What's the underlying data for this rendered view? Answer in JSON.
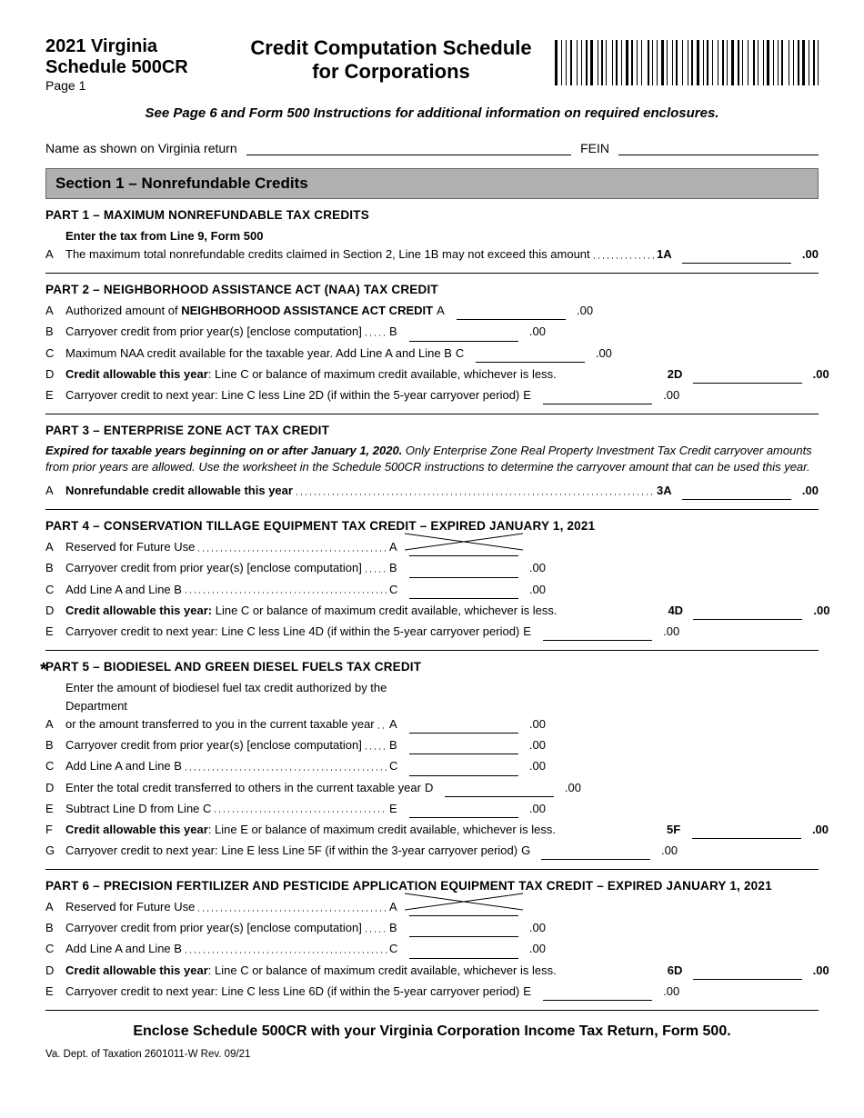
{
  "header": {
    "year_state": "2021 Virginia",
    "schedule": "Schedule 500CR",
    "page": "Page 1",
    "title_line1": "Credit Computation Schedule",
    "title_line2": "for Corporations"
  },
  "instructions": "See Page 6 and Form 500 Instructions for additional information on required enclosures.",
  "name_label": "Name as shown on Virginia return",
  "fein_label": "FEIN",
  "section1_title": "Section 1 – Nonrefundable Credits",
  "colors": {
    "section_bg": "#b0b0b0",
    "border": "#666",
    "text": "#000"
  },
  "suffix": ".00",
  "part1": {
    "title": "PART 1 – MAXIMUM NONREFUNDABLE TAX CREDITS",
    "a_ltr": "A",
    "a_bold": "Enter the tax from Line 9, Form 500",
    "a_text": "The maximum total nonrefundable credits claimed in Section 2, Line 1B may not exceed this amount",
    "a_end": "1A"
  },
  "part2": {
    "title": "PART 2 – NEIGHBORHOOD ASSISTANCE ACT (NAA) TAX CREDIT",
    "a": {
      "ltr": "A",
      "pre": "Authorized amount of ",
      "bold": "NEIGHBORHOOD ASSISTANCE ACT CREDIT",
      "post": " ",
      "end": "A"
    },
    "b": {
      "ltr": "B",
      "text": "Carryover credit from prior year(s) [enclose computation]",
      "end": "B"
    },
    "c": {
      "ltr": "C",
      "text": "Maximum NAA credit available for the taxable year. Add Line A and Line B",
      "end": "C"
    },
    "d": {
      "ltr": "D",
      "bold": "Credit allowable this year",
      "post": ": Line C or balance of maximum credit available, whichever is less.",
      "end": "2D"
    },
    "e": {
      "ltr": "E",
      "text": "Carryover credit to next year: Line C less Line 2D (if within the 5-year carryover period)",
      "end": "E"
    }
  },
  "part3": {
    "title": "PART 3 – ENTERPRISE ZONE ACT TAX CREDIT",
    "note_bold": "Expired for taxable years beginning on or after January 1, 2020.",
    "note_rest": " Only Enterprise Zone Real Property Investment Tax Credit carryover amounts from prior years are allowed. Use the worksheet in the Schedule 500CR instructions to determine the carryover amount that can be used this year.",
    "a": {
      "ltr": "A",
      "bold": "Nonrefundable credit allowable this year",
      "end": "3A"
    }
  },
  "part4": {
    "title": "PART 4 – CONSERVATION TILLAGE EQUIPMENT TAX CREDIT – EXPIRED JANUARY 1, 2021",
    "a": {
      "ltr": "A",
      "text": "Reserved for Future Use",
      "end": "A"
    },
    "b": {
      "ltr": "B",
      "text": "Carryover credit from prior year(s) [enclose computation]",
      "end": "B"
    },
    "c": {
      "ltr": "C",
      "text": "Add Line A and Line B",
      "end": "C"
    },
    "d": {
      "ltr": "D",
      "bold": "Credit allowable this year:",
      "post": " Line C or balance of maximum credit available, whichever is less.",
      "end": "4D"
    },
    "e": {
      "ltr": "E",
      "text": "Carryover credit to next year: Line C less Line 4D (if within the 5-year carryover period)",
      "end": "E"
    }
  },
  "part5": {
    "title": "PART 5 – BIODIESEL AND GREEN DIESEL FUELS TAX CREDIT",
    "a": {
      "ltr": "A",
      "text1": "Enter the amount of biodiesel fuel tax credit authorized by the Department",
      "text2": "or the amount transferred to you in the current taxable year",
      "end": "A"
    },
    "b": {
      "ltr": "B",
      "text": "Carryover credit from prior year(s) [enclose computation]",
      "end": "B"
    },
    "c": {
      "ltr": "C",
      "text": "Add Line A and Line B",
      "end": "C"
    },
    "d": {
      "ltr": "D",
      "text": "Enter the total credit transferred to others in the current taxable year",
      "end": "D"
    },
    "e": {
      "ltr": "E",
      "text": "Subtract Line D from Line C",
      "end": "E"
    },
    "f": {
      "ltr": "F",
      "bold": "Credit allowable this year",
      "post": ": Line E or balance of maximum credit available, whichever is less.",
      "end": "5F"
    },
    "g": {
      "ltr": "G",
      "text": "Carryover credit to next year: Line E less Line 5F (if within the 3-year carryover period)",
      "end": "G"
    }
  },
  "part6": {
    "title": "PART 6 – PRECISION FERTILIZER AND PESTICIDE APPLICATION EQUIPMENT TAX CREDIT – EXPIRED JANUARY 1, 2021",
    "a": {
      "ltr": "A",
      "text": "Reserved for Future Use",
      "end": "A"
    },
    "b": {
      "ltr": "B",
      "text": "Carryover credit from prior year(s) [enclose computation]",
      "end": "B"
    },
    "c": {
      "ltr": "C",
      "text": "Add Line A and Line B",
      "end": "C"
    },
    "d": {
      "ltr": "D",
      "bold": "Credit allowable this year",
      "post": ": Line C or balance of maximum credit available, whichever is less.",
      "end": "6D"
    },
    "e": {
      "ltr": "E",
      "text": "Carryover credit to next year: Line C less Line 6D (if within the 5-year carryover period)",
      "end": "E"
    }
  },
  "footer_bold": "Enclose Schedule 500CR with your Virginia Corporation Income Tax Return, Form 500.",
  "footer_small": "Va. Dept. of Taxation   2601011-W    Rev. 09/21"
}
